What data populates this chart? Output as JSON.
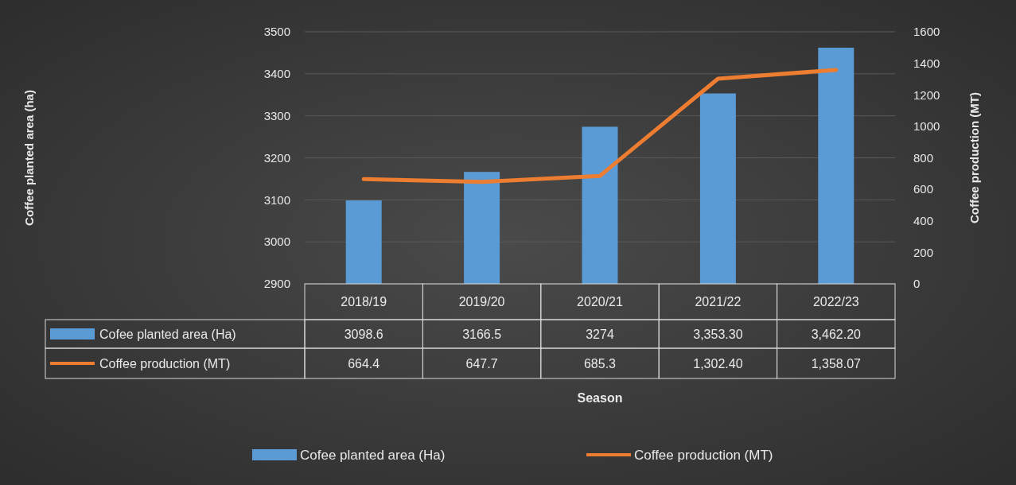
{
  "chart_data": {
    "type": "bar",
    "annotations": [
      "Coffee planted area (ha)",
      "Season"
    ],
    "y2label": "Coffee production (MT)",
    "categories": [
      "2018/19",
      "2019/20",
      "2020/21",
      "2021/22",
      "2022/23"
    ],
    "series": [
      {
        "name": "Cofee planted area (Ha)",
        "color": "#5b9bd5",
        "values": [
          3098.6,
          3166.5,
          3274,
          3353.3,
          3462.2
        ],
        "value_labels": [
          "3098.6",
          "3166.5",
          "3274",
          "3,353.30",
          "3,462.20"
        ]
      },
      {
        "name": "Coffee production (MT)",
        "type": "line",
        "axis": "y2",
        "color": "#ed7d31",
        "values": [
          664.4,
          647.7,
          685.3,
          1302.4,
          1358.07
        ],
        "value_labels": [
          "664.4",
          "647.7",
          "685.3",
          "1,302.40",
          "1,358.07"
        ]
      }
    ],
    "ylim": [
      2900,
      3500
    ],
    "yticks": [
      2900,
      3000,
      3100,
      3200,
      3300,
      3400,
      3500
    ],
    "y2lim": [
      0,
      1600
    ],
    "y2ticks": [
      0,
      200,
      400,
      600,
      800,
      1000,
      1200,
      1400,
      1600
    ],
    "grid": "y",
    "legend": "bottom",
    "marker": "none",
    "line_style": "solid"
  }
}
